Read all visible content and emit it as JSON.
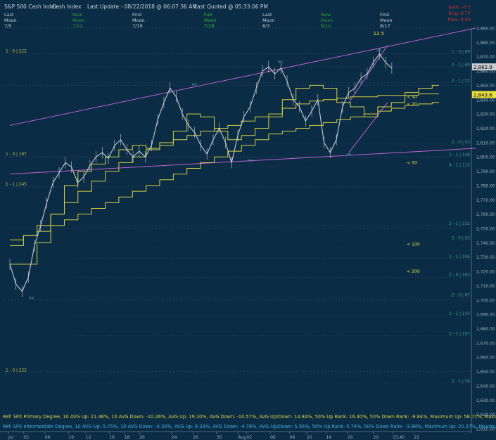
{
  "header": {
    "title": "S&P 500 Cash Index",
    "instrument": "Cash Index",
    "last_update": "Last Update - 08/22/2018 @ 06:07:36 AM",
    "last_quoted": "Last Quoted @ 05:33:06 PM",
    "moon_phases": [
      {
        "label": "Last",
        "sub": "Moon",
        "date": "7/5",
        "color": "#c8d0d8"
      },
      {
        "label": "New",
        "sub": "Moon",
        "date": "7/12",
        "color": "#2f9a2f"
      },
      {
        "label": "First",
        "sub": "Moon",
        "date": "7/19",
        "color": "#c8d0d8"
      },
      {
        "label": "Full",
        "sub": "Moon",
        "date": "7/28",
        "color": "#2fbf2f"
      },
      {
        "label": "Last",
        "sub": "Moon",
        "date": "8/3",
        "color": "#c8d0d8"
      },
      {
        "label": "New",
        "sub": "Moon",
        "date": "8/10",
        "color": "#2f9a2f"
      },
      {
        "label": "First",
        "sub": "Moon",
        "date": "8/17",
        "color": "#c8d0d8"
      }
    ],
    "right_labels": [
      {
        "text": "Spot: -0.5",
        "color": "#e03030"
      },
      {
        "text": "Rng: 0.77",
        "color": "#e03030"
      },
      {
        "text": "Prev: 0.00",
        "color": "#e03030"
      }
    ]
  },
  "colors": {
    "background": "#0b2c45",
    "price": "#c8ccd0",
    "moving_average": "#d8d040",
    "channel": "#c060d0",
    "grid": "#2a4a60",
    "axis_text": "#9ab0c0",
    "level_text": "#c8c040"
  },
  "chart_data": {
    "type": "line",
    "title": "S&P 500 Cash Index",
    "ylim": [
      2610,
      2890
    ],
    "y_ticks": [
      "2,890.00",
      "2,880.00",
      "2,870.00",
      "2,860.00",
      "2,850.00",
      "2,840.00",
      "2,830.00",
      "2,820.00",
      "2,810.00",
      "2,800.00",
      "2,790.00",
      "2,780.00",
      "2,770.00",
      "2,760.00",
      "2,750.00",
      "2,740.00",
      "2,730.00",
      "2,720.00",
      "2,710.00",
      "2,700.00",
      "2,690.00",
      "2,680.00",
      "2,670.00",
      "2,660.00",
      "2,650.00",
      "2,640.00",
      "2,630.00",
      "2,620.00",
      "2,610.00"
    ],
    "x_ticks": [
      "Jul",
      "03",
      "06",
      "10",
      "12",
      "16",
      "18",
      "20",
      "24",
      "26",
      "30",
      "Aug",
      "02",
      "06",
      "08",
      "10",
      "14",
      "16",
      "20",
      "15:40",
      "22"
    ],
    "last_price_tag": "2,862.9",
    "ma_price_tag": "2,843.6",
    "price_series": [
      {
        "d": "Jul 02",
        "v": 2725
      },
      {
        "d": "Jul 02",
        "v": 2711
      },
      {
        "d": "Jul 03",
        "v": 2706
      },
      {
        "d": "Jul 03",
        "v": 2716
      },
      {
        "d": "Jul 05",
        "v": 2738
      },
      {
        "d": "Jul 05",
        "v": 2752
      },
      {
        "d": "Jul 06",
        "v": 2768
      },
      {
        "d": "Jul 06",
        "v": 2782
      },
      {
        "d": "Jul 09",
        "v": 2789
      },
      {
        "d": "Jul 09",
        "v": 2796
      },
      {
        "d": "Jul 10",
        "v": 2793
      },
      {
        "d": "Jul 10",
        "v": 2782
      },
      {
        "d": "Jul 11",
        "v": 2786
      },
      {
        "d": "Jul 12",
        "v": 2794
      },
      {
        "d": "Jul 12",
        "v": 2800
      },
      {
        "d": "Jul 13",
        "v": 2803
      },
      {
        "d": "Jul 16",
        "v": 2799
      },
      {
        "d": "Jul 17",
        "v": 2808
      },
      {
        "d": "Jul 18",
        "v": 2812
      },
      {
        "d": "Jul 19",
        "v": 2805
      },
      {
        "d": "Jul 19",
        "v": 2800
      },
      {
        "d": "Jul 20",
        "v": 2804
      },
      {
        "d": "Jul 23",
        "v": 2800
      },
      {
        "d": "Jul 23",
        "v": 2808
      },
      {
        "d": "Jul 24",
        "v": 2826
      },
      {
        "d": "Jul 25",
        "v": 2838
      },
      {
        "d": "Jul 25",
        "v": 2848
      },
      {
        "d": "Jul 26",
        "v": 2842
      },
      {
        "d": "Jul 26",
        "v": 2830
      },
      {
        "d": "Jul 27",
        "v": 2822
      },
      {
        "d": "Jul 27",
        "v": 2817
      },
      {
        "d": "Jul 30",
        "v": 2808
      },
      {
        "d": "Jul 30",
        "v": 2802
      },
      {
        "d": "Jul 31",
        "v": 2812
      },
      {
        "d": "Aug 01",
        "v": 2820
      },
      {
        "d": "Aug 01",
        "v": 2810
      },
      {
        "d": "Aug 02",
        "v": 2796
      },
      {
        "d": "Aug 02",
        "v": 2815
      },
      {
        "d": "Aug 02",
        "v": 2828
      },
      {
        "d": "Aug 03",
        "v": 2835
      },
      {
        "d": "Aug 06",
        "v": 2848
      },
      {
        "d": "Aug 07",
        "v": 2860
      },
      {
        "d": "Aug 07",
        "v": 2863
      },
      {
        "d": "Aug 08",
        "v": 2858
      },
      {
        "d": "Aug 08",
        "v": 2862
      },
      {
        "d": "Aug 09",
        "v": 2853
      },
      {
        "d": "Aug 10",
        "v": 2840
      },
      {
        "d": "Aug 10",
        "v": 2835
      },
      {
        "d": "Aug 13",
        "v": 2825
      },
      {
        "d": "Aug 13",
        "v": 2832
      },
      {
        "d": "Aug 14",
        "v": 2840
      },
      {
        "d": "Aug 15",
        "v": 2810
      },
      {
        "d": "Aug 15",
        "v": 2803
      },
      {
        "d": "Aug 15",
        "v": 2812
      },
      {
        "d": "Aug 16",
        "v": 2835
      },
      {
        "d": "Aug 17",
        "v": 2845
      },
      {
        "d": "Aug 17",
        "v": 2848
      },
      {
        "d": "Aug 20",
        "v": 2855
      },
      {
        "d": "Aug 20",
        "v": 2858
      },
      {
        "d": "Aug 21",
        "v": 2866
      },
      {
        "d": "Aug 21",
        "v": 2872
      },
      {
        "d": "Aug 21",
        "v": 2866
      },
      {
        "d": "Aug 21",
        "v": 2862
      }
    ],
    "ma_series": [
      {
        "name": "< 50",
        "values": [
          2738,
          2738,
          2745,
          2745,
          2752,
          2752,
          2760,
          2760,
          2768,
          2768,
          2776,
          2776,
          2783,
          2783,
          2790,
          2790,
          2796,
          2796,
          2800,
          2800,
          2805,
          2805,
          2808,
          2808,
          2812,
          2812,
          2815,
          2815,
          2818,
          2818,
          2820,
          2820,
          2822,
          2822,
          2825,
          2825,
          2828,
          2828,
          2830,
          2830,
          2834,
          2834,
          2837,
          2837,
          2839,
          2839,
          2840,
          2840,
          2841,
          2841,
          2842,
          2842,
          2842,
          2842,
          2843,
          2843,
          2843,
          2843,
          2843,
          2843,
          2844,
          2844,
          2844,
          2844
        ]
      },
      {
        "name": "< 100",
        "values": [
          2742,
          2742,
          2745,
          2745,
          2748,
          2748,
          2752,
          2752,
          2756,
          2756,
          2760,
          2760,
          2764,
          2764,
          2768,
          2768,
          2772,
          2772,
          2776,
          2776,
          2780,
          2780,
          2784,
          2784,
          2788,
          2788,
          2792,
          2792,
          2796,
          2796,
          2800,
          2800,
          2804,
          2804,
          2808,
          2808,
          2812,
          2812,
          2816,
          2816,
          2818,
          2818,
          2820,
          2820,
          2822,
          2822,
          2824,
          2824,
          2826,
          2826,
          2828,
          2828,
          2830,
          2830,
          2832,
          2832,
          2834,
          2834,
          2836,
          2836,
          2837,
          2837,
          2838,
          2838
        ]
      },
      {
        "name": "< 20",
        "values": [
          2725,
          2725,
          2725,
          2725,
          2740,
          2740,
          2760,
          2760,
          2780,
          2780,
          2790,
          2790,
          2795,
          2795,
          2800,
          2800,
          2805,
          2805,
          2808,
          2808,
          2806,
          2806,
          2810,
          2810,
          2818,
          2818,
          2830,
          2830,
          2828,
          2828,
          2818,
          2818,
          2812,
          2812,
          2815,
          2815,
          2820,
          2820,
          2828,
          2828,
          2840,
          2840,
          2848,
          2848,
          2850,
          2850,
          2848,
          2848,
          2838,
          2838,
          2835,
          2835,
          2828,
          2828,
          2835,
          2835,
          2838,
          2838,
          2845,
          2845,
          2848,
          2848,
          2850,
          2850
        ]
      }
    ],
    "channel_lines": [
      {
        "name": "upper",
        "from": [
          0,
          2822
        ],
        "to": [
          1,
          2890
        ]
      },
      {
        "name": "lower",
        "from": [
          0,
          2788
        ],
        "to": [
          1,
          2806
        ]
      },
      {
        "name": "rising_upper",
        "from": [
          0.79,
          2838
        ],
        "to": [
          0.88,
          2878
        ]
      },
      {
        "name": "rising_lower",
        "from": [
          0.79,
          2803
        ],
        "to": [
          0.88,
          2838
        ]
      }
    ],
    "channel_label": "12.5",
    "swing_markers": [
      {
        "label": "uu",
        "x": 0.05,
        "v": 2701
      },
      {
        "label": "uu",
        "x": 0.43,
        "v": 2850
      },
      {
        "label": "uu",
        "x": 0.56,
        "v": 2797
      },
      {
        "label": "uu",
        "x": 0.63,
        "v": 2866
      },
      {
        "label": "uu",
        "x": 0.79,
        "v": 2801
      },
      {
        "label": "uu",
        "x": 0.86,
        "v": 2874
      }
    ],
    "ma_labels": [
      "< 50",
      "< 20",
      "< 50",
      "< 100",
      "< 200"
    ],
    "level_labels_left": [
      "1 - 0 | 222",
      "1 - 0 | 167",
      "1 - 1 | 245",
      "1 - 0 | 222"
    ],
    "level_labels_right": [
      "1 - 0 | 69",
      "2 - 1 | 69",
      "2 - 1 | 53",
      "2 - 0 | 53",
      "1 - 1 | 148",
      "4 - 1 | 115",
      "2 - 1 | 152",
      "2 - 0 | 53",
      "1 - 1 | 106",
      "2 - 0 | 163",
      "2 - 0 | 67",
      "2 - 1 | 143",
      "2 - 1 | 107",
      "2 - 1 | 58"
    ]
  },
  "footer": {
    "line1": "Ref: SPX Primary Degree, 10 AVG Up: 21.46%, 10 AVG Down: -10.26%, AVG Up: 19.10%, AVG Down: -10.57%, AVG Up/Down: 14.84%, 50%  Up Rank: 16.40%, 50% Down Rank: -9.84%, Maximum Up: 58.71%, Maximum",
    "line2": "Ref: SPX Intermediate Degree, 10 AVG Up: 5.75%, 10 AVG Down: -4.30%, AVG Up: 6.33%, AVG Down: -4.78%, AVG Up/Down: 5.56%, 50%  Up Rank: 5.74%, 50% Down Rank: -3.88%, Maximum Up: 20.27%, Maximum Dc"
  }
}
